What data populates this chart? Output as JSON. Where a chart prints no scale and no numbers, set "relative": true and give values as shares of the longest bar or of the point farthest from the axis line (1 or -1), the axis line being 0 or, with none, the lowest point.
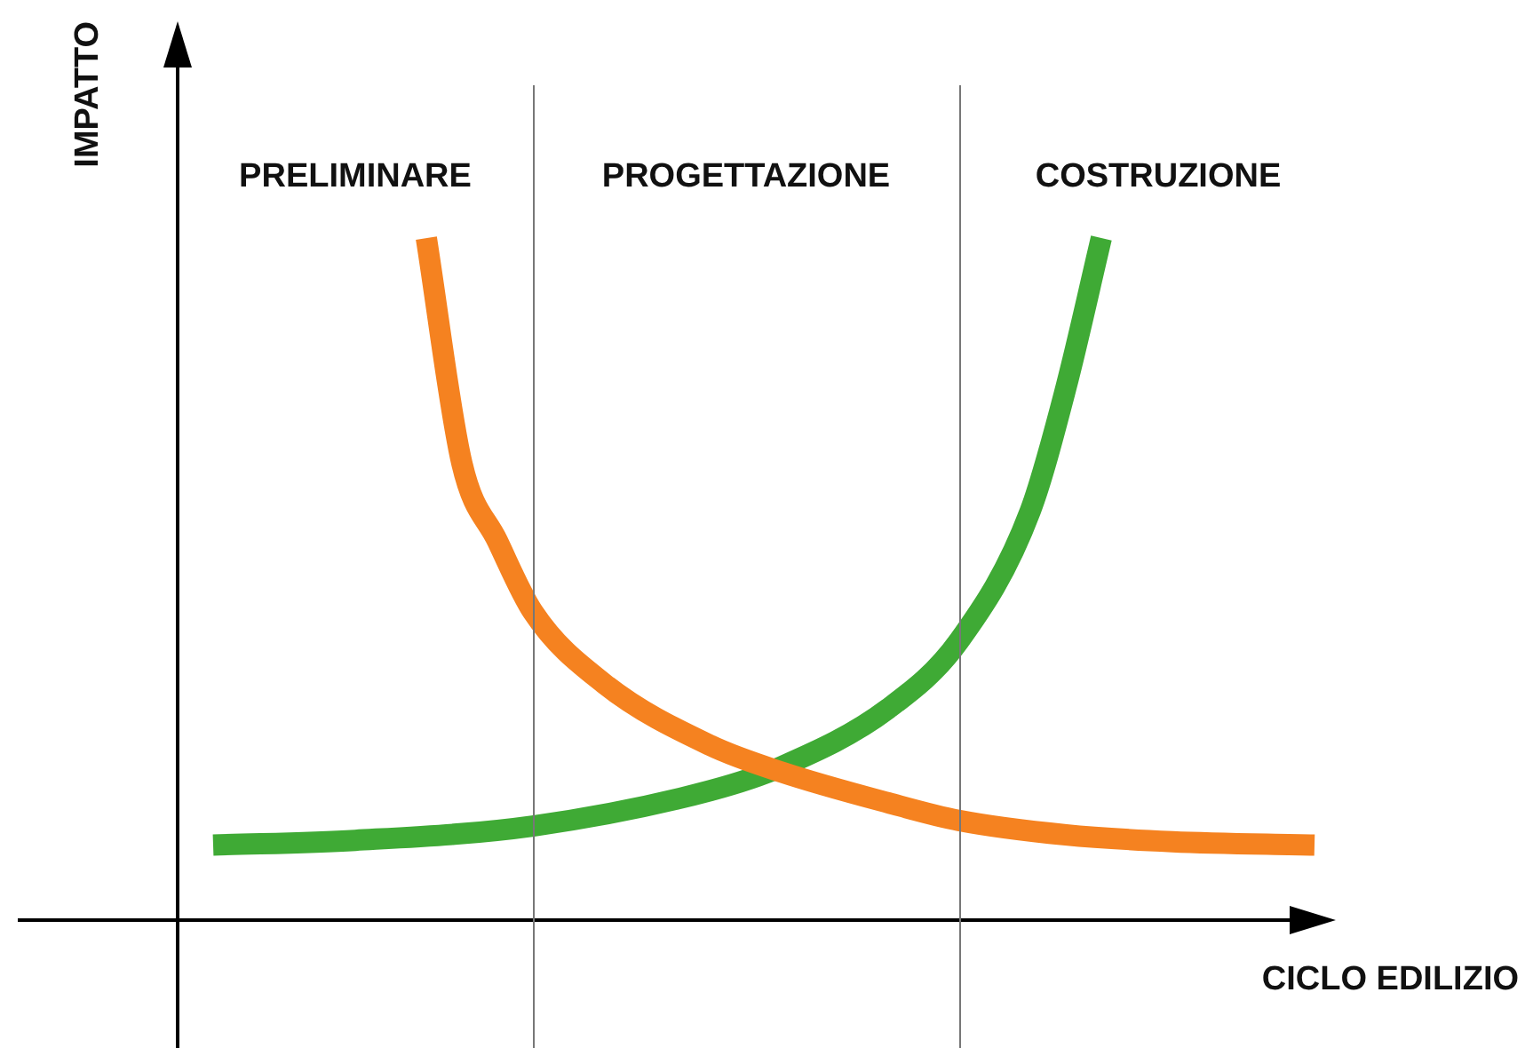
{
  "chart_data": {
    "type": "line",
    "relative": true,
    "xlabel": "CICLO EDILIZIO",
    "ylabel": "IMPATTO",
    "categories": [
      null,
      null,
      null,
      null,
      null,
      null,
      null,
      null,
      null,
      null,
      null,
      null,
      null,
      null,
      null,
      null,
      null,
      null,
      null,
      null,
      null,
      null,
      null,
      null,
      null,
      null,
      null,
      null,
      null,
      null,
      null,
      null,
      null
    ],
    "series": [
      {
        "color": "#f58220",
        "values": [
          null,
          null,
          null,
          null,
          null,
          null,
          null,
          1.0,
          0.67,
          0.556,
          0.452,
          null,
          0.347,
          null,
          null,
          0.256,
          null,
          0.217,
          null,
          null,
          0.172,
          null,
          0.146,
          null,
          null,
          0.125,
          null,
          null,
          0.115,
          null,
          null,
          null,
          0.11
        ]
      },
      {
        "color": "#3faa35",
        "values": [
          null,
          0.11,
          null,
          null,
          null,
          0.117,
          null,
          null,
          null,
          null,
          0.138,
          null,
          null,
          null,
          null,
          0.19,
          null,
          0.225,
          null,
          null,
          0.31,
          null,
          0.41,
          null,
          0.6,
          0.78,
          1.0,
          null,
          null,
          null,
          null,
          null,
          null
        ]
      }
    ],
    "annotations": [
      "PRELIMINARE",
      "PROGETTAZIONE",
      "COSTRUZIONE"
    ],
    "marker": "none"
  }
}
